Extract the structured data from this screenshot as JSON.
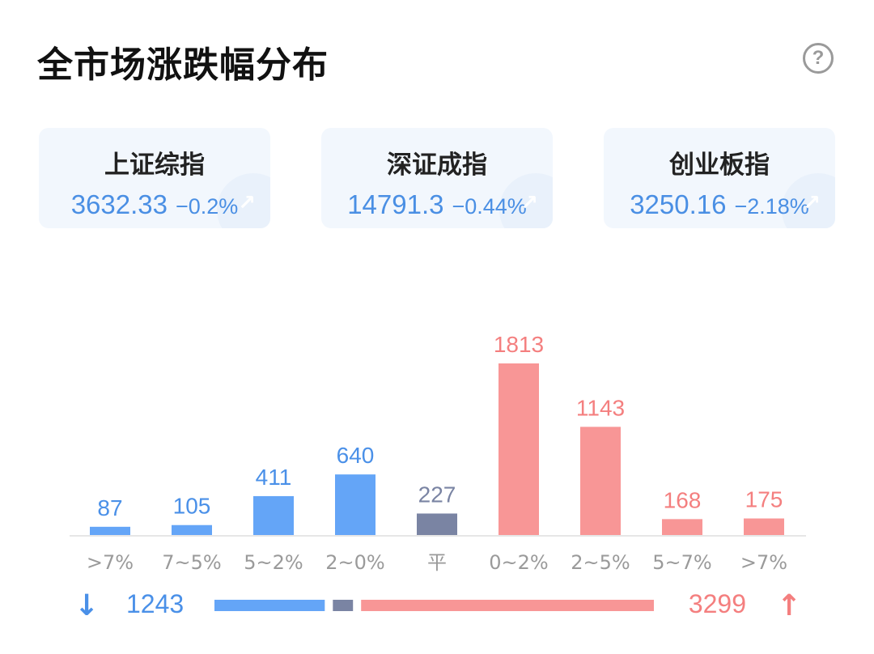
{
  "header": {
    "title": "全市场涨跌幅分布",
    "help_icon": "question-circle-icon",
    "help_glyph": "?"
  },
  "indices": [
    {
      "name": "上证综指",
      "value": "3632.33",
      "change": "−0.2%"
    },
    {
      "name": "深证成指",
      "value": "14791.3",
      "change": "−0.44%"
    },
    {
      "name": "创业板指",
      "value": "3250.16",
      "change": "−2.18%"
    }
  ],
  "colors": {
    "down": "#64a5f7",
    "flat": "#7a84a3",
    "up": "#f89696",
    "down_text": "#4a90e8",
    "up_text": "#f47f7f",
    "axis": "#e6e6e6"
  },
  "chart_data": {
    "type": "bar",
    "title": "全市场涨跌幅分布",
    "xlabel": "",
    "ylabel": "",
    "categories": [
      ">7%",
      "7~5%",
      "5~2%",
      "2~0%",
      "平",
      "0~2%",
      "2~5%",
      "5~7%",
      ">7%"
    ],
    "values": [
      87,
      105,
      411,
      640,
      227,
      1813,
      1143,
      168,
      175
    ],
    "bar_groups": [
      "down",
      "down",
      "down",
      "down",
      "flat",
      "up",
      "up",
      "up",
      "up"
    ],
    "ylim": [
      0,
      1813
    ],
    "grid": false,
    "legend": "none",
    "summary": {
      "down_total": 1243,
      "flat_total": 227,
      "up_total": 3299
    }
  },
  "summary": {
    "down_arrow": "↓",
    "up_arrow": "↑",
    "down_count": "1243",
    "up_count": "3299"
  }
}
